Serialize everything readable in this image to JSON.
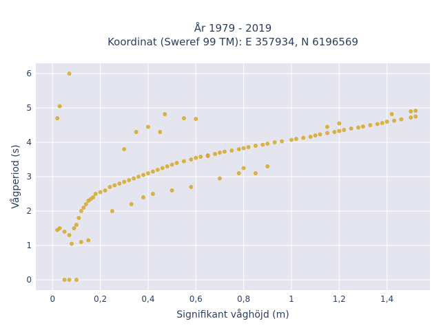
{
  "chart_data": {
    "type": "scatter",
    "title": [
      "År 1979 - 2019",
      "Koordinat (Sweref 99 TM): E 357934, N 6196569"
    ],
    "xlabel": "Signifikant våghöjd (m)",
    "ylabel": "Vågperiod (s)",
    "xlim": [
      -0.07,
      1.58
    ],
    "ylim": [
      -0.3,
      6.3
    ],
    "x_ticks": [
      0,
      0.2,
      0.4,
      0.6,
      0.8,
      1,
      1.2,
      1.4
    ],
    "x_tick_labels": [
      "0",
      "0,2",
      "0,4",
      "0,6",
      "0,8",
      "1",
      "1,2",
      "1,4"
    ],
    "y_ticks": [
      0,
      1,
      2,
      3,
      4,
      5,
      6
    ],
    "y_tick_labels": [
      "0",
      "1",
      "2",
      "3",
      "4",
      "5",
      "6"
    ],
    "grid": true,
    "marker_color": "#D4A418",
    "plot_bgcolor": "#E5E5F0",
    "series": [
      {
        "x": [
          0.02,
          0.03,
          0.05,
          0.07,
          0.09,
          0.1,
          0.11,
          0.12,
          0.13,
          0.14,
          0.15,
          0.16,
          0.17,
          0.18,
          0.2,
          0.22,
          0.24,
          0.26,
          0.28,
          0.3,
          0.32,
          0.34,
          0.36,
          0.38,
          0.4,
          0.42,
          0.44,
          0.46,
          0.48,
          0.5,
          0.52,
          0.55,
          0.58,
          0.6,
          0.62,
          0.65,
          0.68,
          0.7,
          0.72,
          0.75,
          0.78,
          0.8,
          0.82,
          0.85,
          0.88,
          0.9,
          0.93,
          0.96,
          1.0,
          1.02,
          1.05,
          1.08,
          1.1,
          1.12,
          1.15,
          1.18,
          1.2,
          1.22,
          1.25,
          1.28,
          1.3,
          1.33,
          1.36,
          1.38,
          1.4,
          1.43,
          1.46,
          1.5,
          1.52,
          0.07,
          0.03,
          0.02,
          0.05,
          0.07,
          0.1,
          0.3,
          0.35,
          0.4,
          0.45,
          0.47,
          0.55,
          0.6,
          0.65,
          0.85,
          0.9,
          1.15,
          1.2,
          1.42,
          1.5,
          1.52,
          0.25,
          0.33,
          0.38,
          0.42,
          0.5,
          0.58,
          0.7,
          0.78,
          0.8,
          0.15,
          0.12,
          0.08
        ],
        "y": [
          1.45,
          1.5,
          1.4,
          1.3,
          1.5,
          1.6,
          1.8,
          2.0,
          2.1,
          2.2,
          2.3,
          2.35,
          2.4,
          2.5,
          2.55,
          2.6,
          2.7,
          2.75,
          2.8,
          2.85,
          2.9,
          2.95,
          3.0,
          3.05,
          3.1,
          3.15,
          3.2,
          3.25,
          3.3,
          3.35,
          3.4,
          3.45,
          3.5,
          3.55,
          3.58,
          3.62,
          3.66,
          3.7,
          3.73,
          3.76,
          3.8,
          3.83,
          3.86,
          3.9,
          3.93,
          3.96,
          4.0,
          4.03,
          4.07,
          4.1,
          4.13,
          4.16,
          4.2,
          4.23,
          4.27,
          4.3,
          4.33,
          4.36,
          4.4,
          4.43,
          4.46,
          4.5,
          4.53,
          4.56,
          4.6,
          4.63,
          4.67,
          4.72,
          4.75,
          6.0,
          5.05,
          4.7,
          0.0,
          0.0,
          0.0,
          3.8,
          4.3,
          4.45,
          4.3,
          4.82,
          4.7,
          4.68,
          3.6,
          3.1,
          3.3,
          4.45,
          4.55,
          4.82,
          4.9,
          4.92,
          2.0,
          2.2,
          2.4,
          2.5,
          2.6,
          2.7,
          2.95,
          3.1,
          3.25,
          1.15,
          1.1,
          1.05
        ]
      }
    ]
  }
}
